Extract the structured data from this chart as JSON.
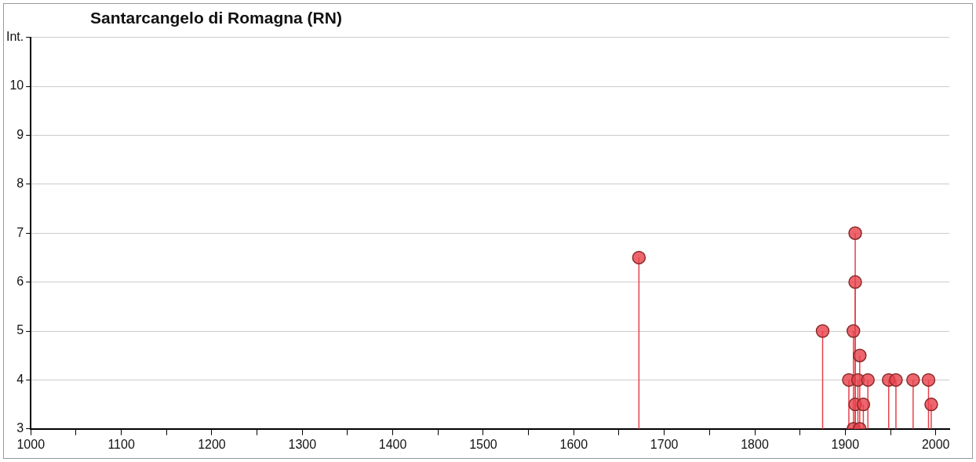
{
  "chart_data": {
    "type": "lollipop",
    "title": "Santarcangelo di Romagna (RN)",
    "series": [
      {
        "color": "#e8404a",
        "x": [
          1672,
          1875,
          1909,
          1911,
          1911,
          1916,
          1904,
          1914,
          1925,
          1948,
          1956,
          1975,
          1992,
          1911,
          1920,
          1995,
          1909,
          1913,
          1916
        ],
        "values": [
          6.5,
          5,
          5,
          7,
          6,
          4.5,
          4,
          4,
          4,
          4,
          4,
          4,
          4,
          3.5,
          3.5,
          3.5,
          3,
          null,
          3
        ]
      }
    ],
    "xlim": [
      1000,
      2015
    ],
    "xticks": [
      1000,
      {
        "value": 1050,
        "label": null
      },
      1100,
      {
        "value": 1150,
        "label": null
      },
      1200,
      {
        "value": 1250,
        "label": null
      },
      1300,
      {
        "value": 1350,
        "label": null
      },
      1400,
      {
        "value": 1450,
        "label": null
      },
      1500,
      {
        "value": 1550,
        "label": null
      },
      1600,
      {
        "value": 1650,
        "label": null
      },
      1700,
      {
        "value": 1750,
        "label": null
      },
      1800,
      {
        "value": 1850,
        "label": null
      },
      1900,
      {
        "value": 1950,
        "label": null
      },
      2000
    ],
    "ylim": [
      3,
      11
    ],
    "yticks": [
      3,
      4,
      5,
      6,
      7,
      8,
      9,
      10,
      {
        "value": 11,
        "label": "Int."
      }
    ],
    "grid": "y",
    "marker": "circle",
    "legend": false
  }
}
